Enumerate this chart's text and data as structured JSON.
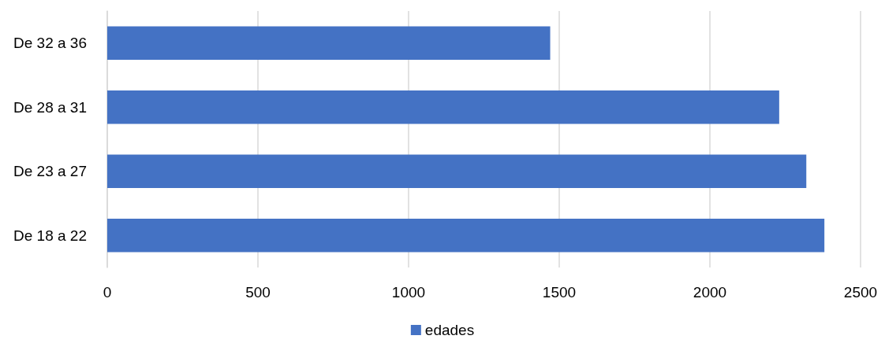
{
  "chart_data": {
    "type": "bar",
    "orientation": "horizontal",
    "categories": [
      "De 32 a 36",
      "De 28 a 31",
      "De 23 a 27",
      "De 18 a 22"
    ],
    "series": [
      {
        "name": "edades",
        "color": "#4472c4",
        "values": [
          1470,
          2230,
          2320,
          2380
        ]
      }
    ],
    "xlim": [
      0,
      2500
    ],
    "xticks": [
      0,
      500,
      1000,
      1500,
      2000,
      2500
    ],
    "grid": "x",
    "legend": "bottom"
  }
}
